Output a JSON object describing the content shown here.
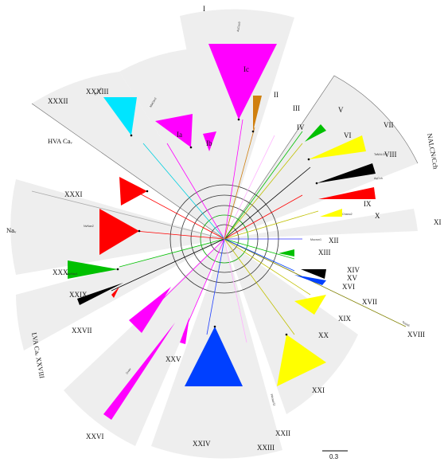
{
  "figure": {
    "scale_bar_label": "0.3",
    "group_labels": [
      "HVA Caᵥ",
      "Naᵥ",
      "NALCN/Cch",
      "LVA Caᵥ XXVIII"
    ]
  },
  "clades": [
    {
      "label": "I",
      "sublabel": "Ic",
      "color": "#ff00ff"
    },
    {
      "label": "Ia",
      "color": "#ff00ff"
    },
    {
      "label": "Ib",
      "color": "#ff00ff"
    },
    {
      "label": "II",
      "color": "#d08010"
    },
    {
      "label": "III",
      "color": "#ffb0ff"
    },
    {
      "label": "IV",
      "color": "#ff00ff"
    },
    {
      "label": "V",
      "color": "#00c000"
    },
    {
      "label": "VI",
      "color": "#ffff00"
    },
    {
      "label": "VII",
      "color": "#ffff00"
    },
    {
      "label": "VIII",
      "color": "#000000"
    },
    {
      "label": "IX",
      "color": "#ff0000"
    },
    {
      "label": "X",
      "color": "#ffff00"
    },
    {
      "label": "XI",
      "color": "#888888"
    },
    {
      "label": "XII",
      "color": "#3030ff"
    },
    {
      "label": "XIII",
      "color": "#00c000"
    },
    {
      "label": "XIV",
      "color": "#00c000"
    },
    {
      "label": "XV",
      "color": "#000000"
    },
    {
      "label": "XVI",
      "color": "#0040ff"
    },
    {
      "label": "XVII",
      "color": "#808000"
    },
    {
      "label": "XVIII",
      "color": "#808000"
    },
    {
      "label": "XIX",
      "color": "#ffff00"
    },
    {
      "label": "XX",
      "color": "#ffff00"
    },
    {
      "label": "XXI",
      "color": "#ffff00"
    },
    {
      "label": "XXII",
      "color": "#ff9f9f"
    },
    {
      "label": "XXIII",
      "color": "#ffb0ff"
    },
    {
      "label": "XXIV",
      "color": "#0040ff"
    },
    {
      "label": "XXV",
      "color": "#ff00ff"
    },
    {
      "label": "XXVI",
      "color": "#ff00ff"
    },
    {
      "label": "XXVII",
      "color": "#ff00ff"
    },
    {
      "label": "XXIX",
      "color": "#000000"
    },
    {
      "label": "XXX",
      "color": "#00c000"
    },
    {
      "label": "XXXI",
      "color": "#ff0000"
    },
    {
      "label": "XXXII",
      "color": "#00e5ff"
    },
    {
      "label": "XXXIII",
      "color": "#00e5ff"
    }
  ],
  "leaf_samples": [
    "AcCav3",
    "MaCav2",
    "HsCav1",
    "NvNav2",
    "TaNALCN",
    "AqCch",
    "Pkinsei11",
    "Mucron1",
    "Chano2",
    "Teslo5",
    "Gvav",
    "AspNav1"
  ]
}
